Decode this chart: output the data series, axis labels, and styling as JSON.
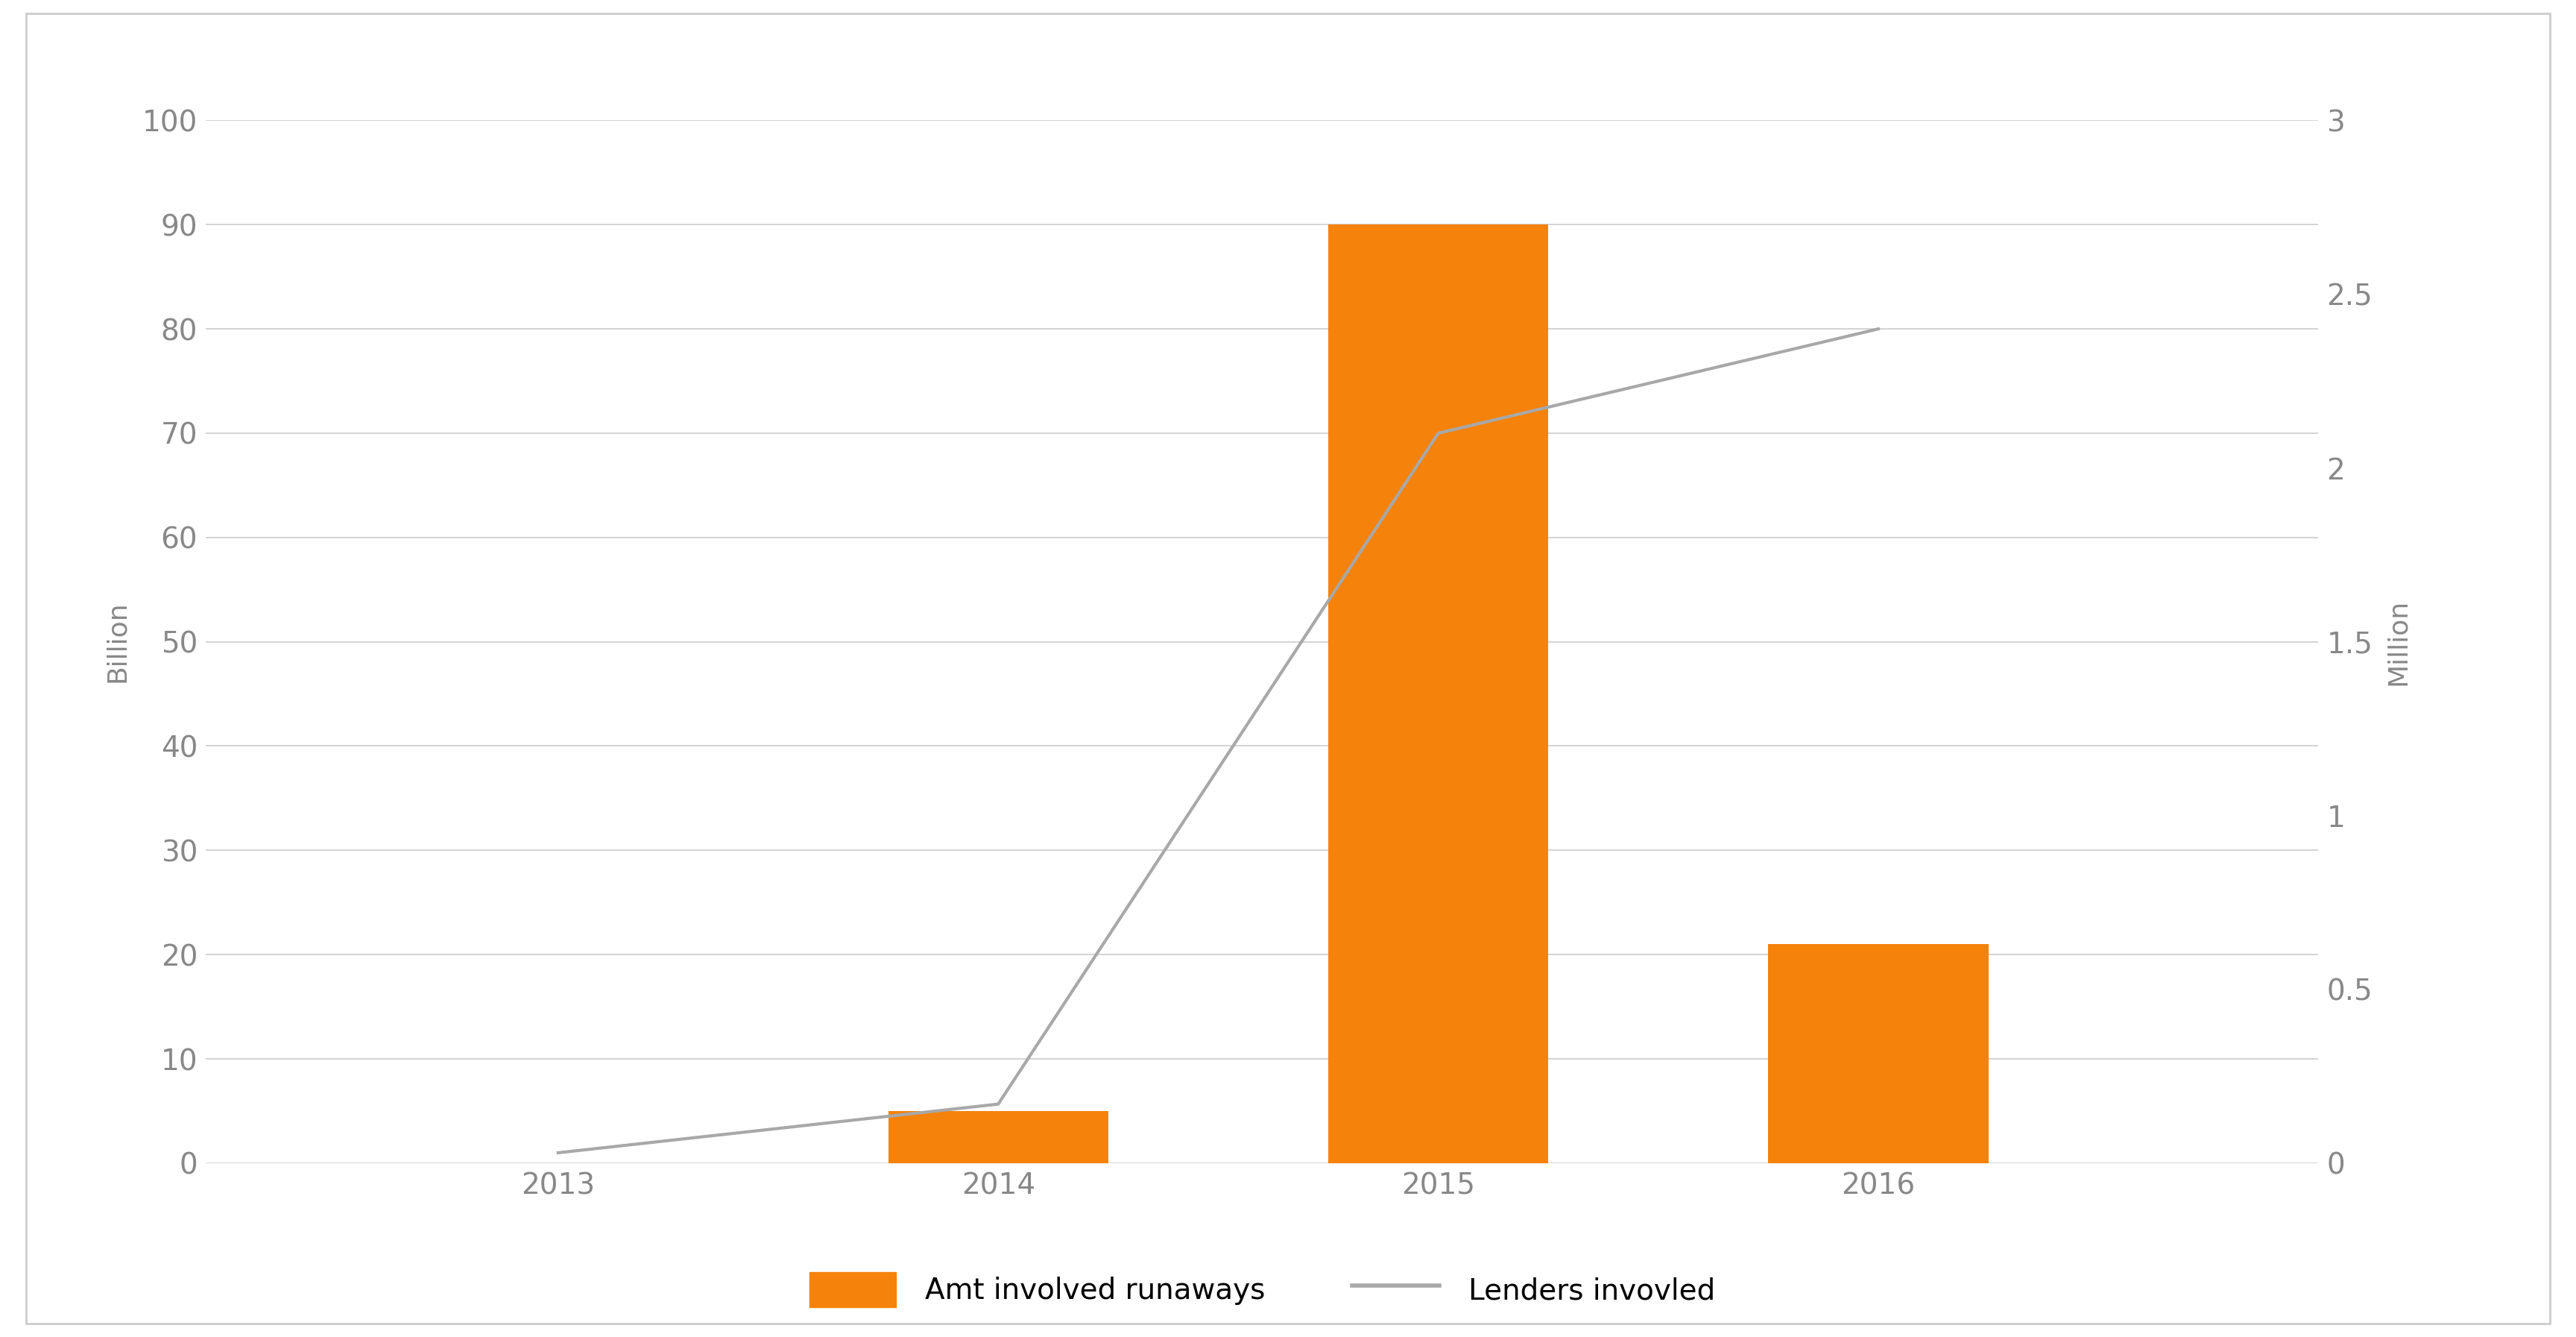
{
  "years": [
    2013,
    2014,
    2015,
    2016
  ],
  "bar_values": [
    0,
    5,
    90,
    21
  ],
  "line_values": [
    0.03,
    0.17,
    2.1,
    2.4
  ],
  "bar_color": "#F5820A",
  "line_color": "#A8A8A8",
  "left_ylabel": "Billion",
  "right_ylabel": "Million",
  "left_ylim": [
    0,
    100
  ],
  "right_ylim": [
    0,
    3
  ],
  "left_yticks": [
    0,
    10,
    20,
    30,
    40,
    50,
    60,
    70,
    80,
    90,
    100
  ],
  "right_yticks": [
    0,
    0.5,
    1.0,
    1.5,
    2.0,
    2.5,
    3.0
  ],
  "legend_bar_label": "Amt involved runaways",
  "legend_line_label": "Lenders invovled",
  "background_color": "#FFFFFF",
  "outer_border_color": "#CCCCCC",
  "grid_color": "#CCCCCC",
  "tick_color": "#888888",
  "label_color": "#888888",
  "bar_width": 0.5,
  "label_fontsize": 26,
  "tick_fontsize": 28,
  "legend_fontsize": 28,
  "line_width": 3.0,
  "xlim": [
    2012.2,
    2017.0
  ]
}
